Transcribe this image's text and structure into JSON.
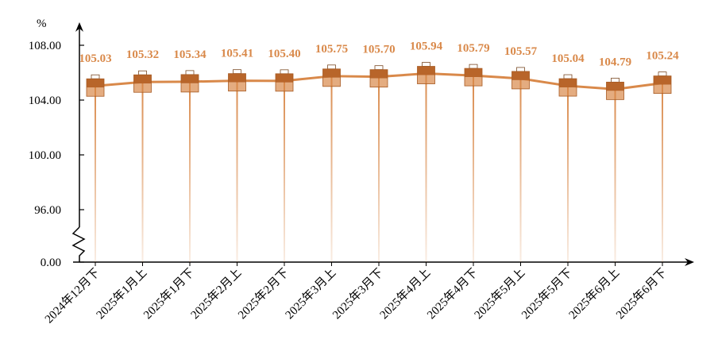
{
  "chart_data": {
    "type": "line",
    "y_unit": "%",
    "categories": [
      "2024年12月下",
      "2025年1月上",
      "2025年1月下",
      "2025年2月上",
      "2025年2月下",
      "2025年3月上",
      "2025年3月下",
      "2025年4月上",
      "2025年4月下",
      "2025年5月上",
      "2025年5月下",
      "2025年6月上",
      "2025年6月下"
    ],
    "values": [
      105.03,
      105.32,
      105.34,
      105.41,
      105.4,
      105.75,
      105.7,
      105.94,
      105.79,
      105.57,
      105.04,
      104.79,
      105.24
    ],
    "data_labels": [
      "105.03",
      "105.32",
      "105.34",
      "105.41",
      "105.40",
      "105.75",
      "105.70",
      "105.94",
      "105.79",
      "105.57",
      "105.04",
      "104.79",
      "105.24"
    ],
    "y_ticks": [
      0,
      96,
      100,
      104,
      108
    ],
    "y_tick_labels": [
      "0.00",
      "96.00",
      "100.00",
      "104.00",
      "108.00"
    ],
    "ylim": [
      96,
      108
    ],
    "axis_break": true,
    "grid": false,
    "legend": "none",
    "colors": {
      "line": "#D9894A",
      "marker": "#D9894A",
      "marker_dark": "#B8652A",
      "label": "#D9894A",
      "axis": "#000000"
    }
  }
}
